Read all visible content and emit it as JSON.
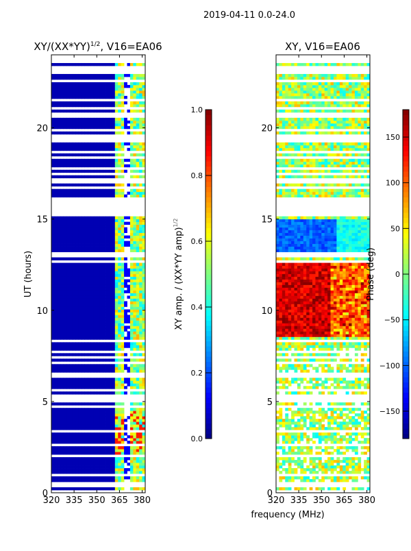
{
  "suptitle": "2019-04-11 0.0-24.0",
  "chart_data": [
    {
      "type": "heatmap",
      "title": "XY/(XX*YY)^1/2, V16=EA06",
      "title_main": "XY/(XX*YY)",
      "title_sup": "1/2",
      "title_tail": ", V16=EA06",
      "xlabel": "frequency (MHz)",
      "ylabel": "UT (hours)",
      "xlim": [
        320,
        382
      ],
      "ylim": [
        0,
        24
      ],
      "xticks": [
        "320",
        "335",
        "350",
        "365",
        "380"
      ],
      "xtick_values": [
        320,
        335,
        350,
        365,
        380
      ],
      "yticks": [
        "0",
        "5",
        "10",
        "15",
        "20"
      ],
      "ytick_values": [
        0,
        5,
        10,
        15,
        20
      ],
      "colormap": "jet",
      "colorbar": {
        "label": "XY amp. / (XX*YY amp)^1/2",
        "label_main": "XY amp. / (XX*YY amp)",
        "label_sup": "1/2",
        "range": [
          0.0,
          1.0
        ],
        "ticks": [
          "0.0",
          "0.2",
          "0.4",
          "0.6",
          "0.8",
          "1.0"
        ],
        "tick_values": [
          0,
          0.2,
          0.4,
          0.6,
          0.8,
          1.0
        ]
      },
      "description_of_values": "mostly ~0.05 (dark blue) below 362 MHz; 0.3-0.7 in 362-382 MHz; flagged (blank) rows scattered"
    },
    {
      "type": "heatmap",
      "title": "XY, V16=EA06",
      "xlim": [
        320,
        382
      ],
      "ylim": [
        0,
        24
      ],
      "xticks": [
        "320",
        "335",
        "350",
        "365",
        "380"
      ],
      "xtick_values": [
        320,
        335,
        350,
        365,
        380
      ],
      "yticks": [
        "0",
        "5",
        "10",
        "15",
        "20"
      ],
      "ytick_values": [
        0,
        5,
        10,
        15,
        20
      ],
      "colormap": "jet",
      "colorbar": {
        "label": "Phase (deg)",
        "range": [
          -180,
          180
        ],
        "ticks": [
          "−150",
          "−100",
          "−50",
          "0",
          "50",
          "100",
          "150"
        ],
        "tick_values": [
          -150,
          -100,
          -50,
          0,
          50,
          100,
          150
        ]
      },
      "description_of_values": "phase near 0-50 deg for most times, 100-180 deg between 8.5 and 12.5 UT, -100 to -150 deg between 13 and 15 UT"
    }
  ]
}
